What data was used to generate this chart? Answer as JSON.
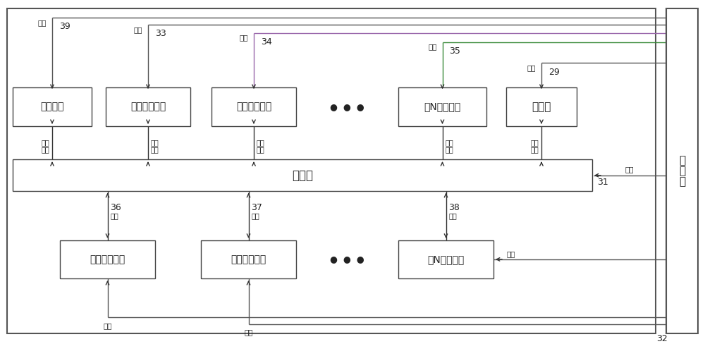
{
  "bg_color": "#ffffff",
  "lc": "#555555",
  "gc": "#3a8a3a",
  "pc": "#9966aa",
  "ac": "#333333",
  "boxes": {
    "alarm": {
      "label": "报警装置",
      "id": "39"
    },
    "fan1": {
      "label": "第一轴流风机",
      "id": "33"
    },
    "fan2": {
      "label": "第二轴流风机",
      "id": "34"
    },
    "fanN": {
      "label": "第N轴流风机",
      "id": "35"
    },
    "cooler": {
      "label": "制冷机",
      "id": "29"
    },
    "processor": {
      "label": "处理器",
      "id": "31"
    },
    "temp1": {
      "label": "第一测温装置",
      "id": "36"
    },
    "temp2": {
      "label": "第二测温装置",
      "id": "37"
    },
    "tempN": {
      "label": "第N测温装置",
      "id": "38"
    },
    "power": {
      "label": "总电源",
      "id": "32"
    }
  },
  "alarm_signal": "报警信号",
  "control_signal": "控制信号",
  "power_supply": "供电",
  "communication": "通讯"
}
